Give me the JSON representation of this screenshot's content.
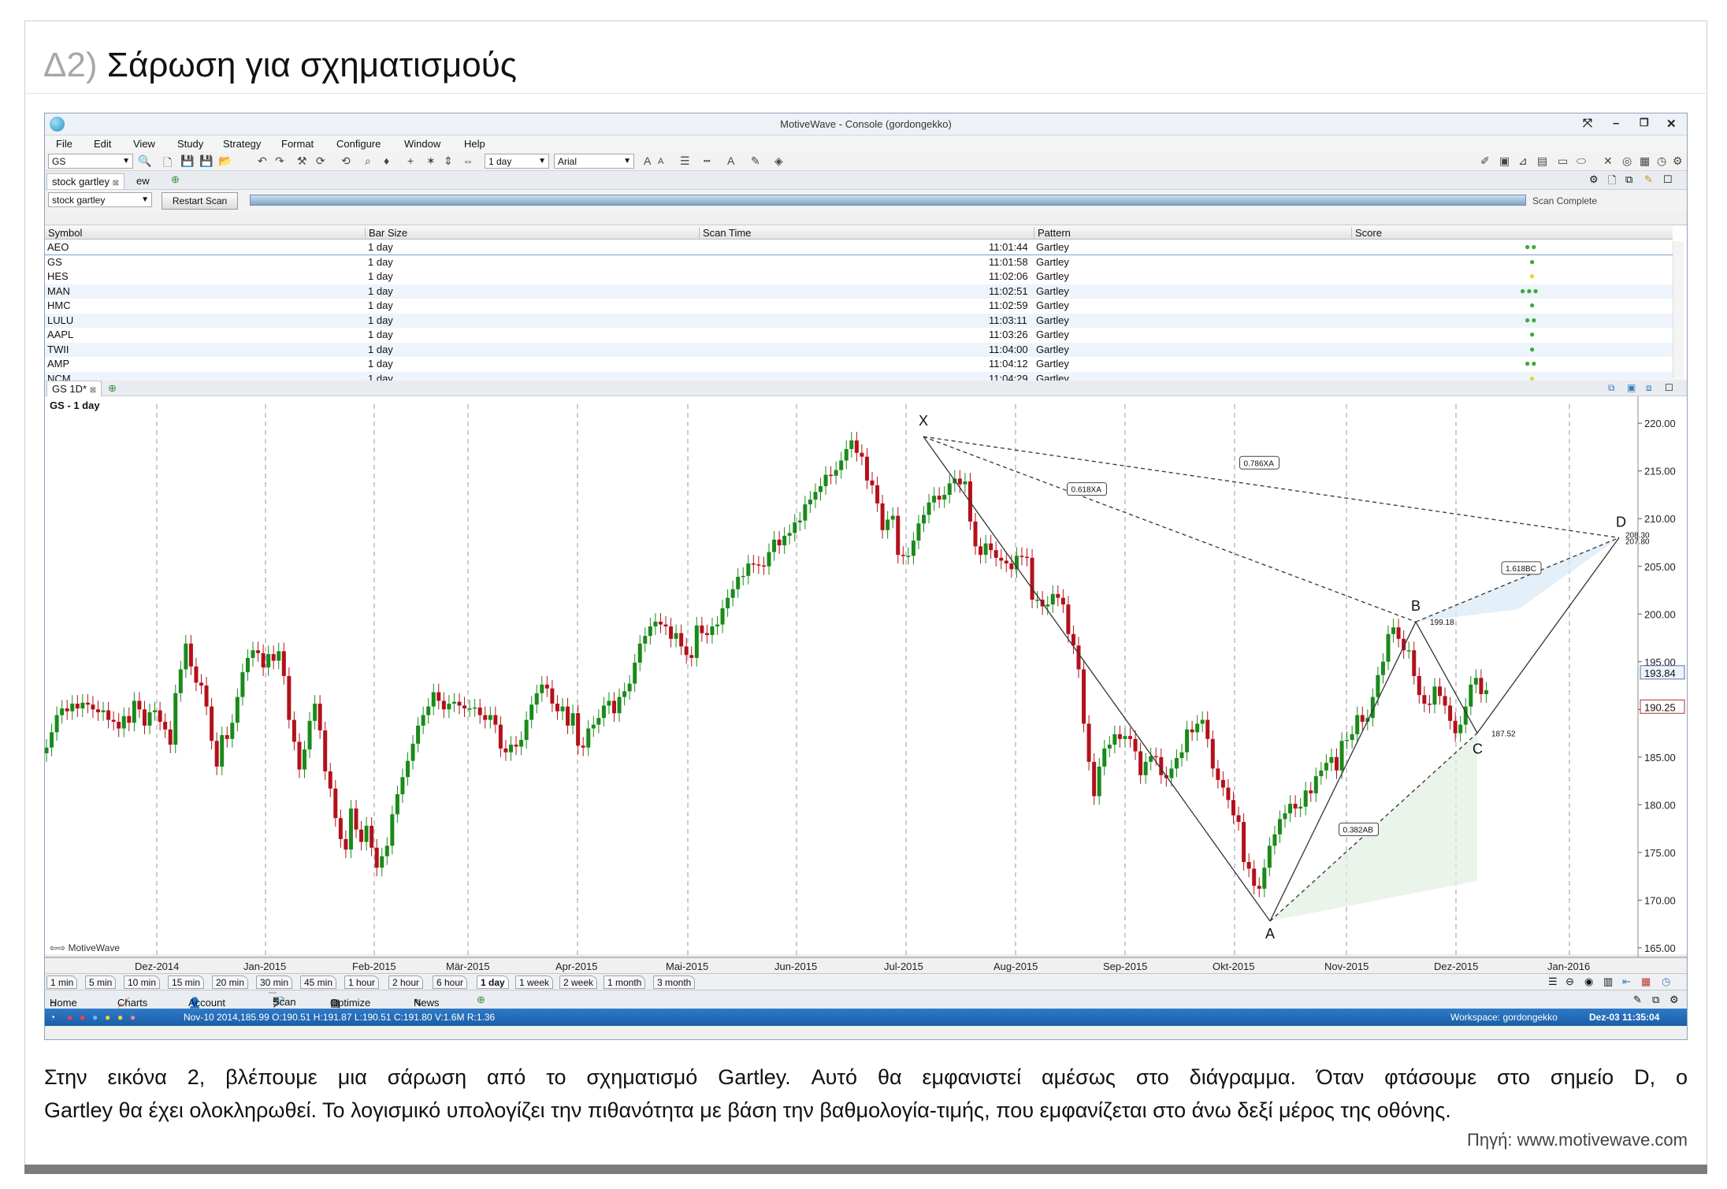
{
  "header": {
    "tag": "Δ2)",
    "title": "Σάρωση για σχηματισμούς"
  },
  "app": {
    "title": "MotiveWave - Console (gordongekko)",
    "menu": [
      "File",
      "Edit",
      "View",
      "Study",
      "Strategy",
      "Format",
      "Configure",
      "Window",
      "Help"
    ],
    "symbol": "GS",
    "bar_size": "1 day",
    "font": "Arial",
    "tabs": [
      "stock gartley",
      "ew"
    ],
    "scan_select": "stock gartley",
    "restart_label": "Restart Scan",
    "scan_status": "Scan Complete",
    "columns": [
      "Symbol",
      "Bar Size",
      "Scan Time",
      "Pattern",
      "Score"
    ],
    "rows": [
      {
        "symbol": "AEO",
        "bar": "1 day",
        "time": "11:01:44",
        "pattern": "Gartley",
        "score": "●●",
        "color": "#3aaa35"
      },
      {
        "symbol": "GS",
        "bar": "1 day",
        "time": "11:01:58",
        "pattern": "Gartley",
        "score": "●",
        "color": "#3aaa35"
      },
      {
        "symbol": "HES",
        "bar": "1 day",
        "time": "11:02:06",
        "pattern": "Gartley",
        "score": "●",
        "color": "#e8d22a"
      },
      {
        "symbol": "MAN",
        "bar": "1 day",
        "time": "11:02:51",
        "pattern": "Gartley",
        "score": "●●●",
        "color": "#3aaa35"
      },
      {
        "symbol": "HMC",
        "bar": "1 day",
        "time": "11:02:59",
        "pattern": "Gartley",
        "score": "●",
        "color": "#3aaa35"
      },
      {
        "symbol": "LULU",
        "bar": "1 day",
        "time": "11:03:11",
        "pattern": "Gartley",
        "score": "●●",
        "color": "#3aaa35"
      },
      {
        "symbol": "AAPL",
        "bar": "1 day",
        "time": "11:03:26",
        "pattern": "Gartley",
        "score": "●",
        "color": "#3aaa35"
      },
      {
        "symbol": "TWII",
        "bar": "1 day",
        "time": "11:04:00",
        "pattern": "Gartley",
        "score": "●",
        "color": "#3aaa35"
      },
      {
        "symbol": "AMP",
        "bar": "1 day",
        "time": "11:04:12",
        "pattern": "Gartley",
        "score": "●●",
        "color": "#3aaa35"
      },
      {
        "symbol": "NCM",
        "bar": "1 day",
        "time": "11:04:29",
        "pattern": "Gartley",
        "score": "●",
        "color": "#e8d22a"
      }
    ],
    "chart_tab": "GS 1D*",
    "chart_label": "GS - 1 day",
    "watermark": "MotiveWave",
    "timeframes": [
      "1 min",
      "5 min",
      "10 min",
      "15 min",
      "20 min",
      "30 min",
      "45 min",
      "1 hour",
      "2 hour",
      "6 hour",
      "1 day",
      "1 week",
      "2 week",
      "1 month",
      "3 month"
    ],
    "nav": [
      "Home",
      "Charts",
      "Account",
      "Scan",
      "Optimize",
      "News"
    ],
    "status_left": "Nov-10 2014,185.99 O:190.51 H:191.87 L:190.51 C:191.80 V:1.6M R:1.36",
    "status_right": "Workspace: gordongekko",
    "status_time": "Dez-03 11:35:04"
  },
  "chart_data": {
    "type": "candlestick",
    "title": "GS - 1 day",
    "x_ticks": [
      "Dez-2014",
      "Jan-2015",
      "Feb-2015",
      "Mär-2015",
      "Apr-2015",
      "Mai-2015",
      "Jun-2015",
      "Jul-2015",
      "Aug-2015",
      "Sep-2015",
      "Okt-2015",
      "Nov-2015",
      "Dez-2015",
      "Jan-2016"
    ],
    "y_ticks": [
      220,
      215,
      210,
      205,
      200,
      195,
      190,
      185,
      180,
      175,
      170,
      165
    ],
    "ylim": [
      164,
      222
    ],
    "price_labels": [
      193.84,
      190.25
    ],
    "closes": [
      186,
      187.6,
      189.4,
      190.1,
      189.8,
      190.6,
      190.1,
      190.7,
      190.5,
      190,
      189.7,
      189.9,
      188.9,
      188.7,
      188,
      189.3,
      188.6,
      190.9,
      190,
      188.3,
      189.7,
      189.9,
      188.7,
      187.9,
      186.3,
      191.7,
      194.2,
      196.9,
      194.5,
      192.8,
      192.5,
      190.3,
      186.7,
      184,
      187.3,
      186.9,
      188.6,
      191.3,
      193.9,
      195.4,
      196.2,
      195.9,
      194.4,
      195.8,
      195.1,
      196.1,
      193.5,
      188.9,
      186.6,
      183.7,
      185.8,
      188.8,
      190.6,
      187.8,
      183.5,
      181.7,
      178.6,
      176.4,
      175.3,
      179.6,
      177.4,
      176.1,
      177.8,
      175.5,
      173.4,
      174.6,
      175.7,
      179,
      181.1,
      182.9,
      184.6,
      186.4,
      188.3,
      189.4,
      190.3,
      191.8,
      190.9,
      190,
      190.6,
      190.8,
      190.4,
      190.1,
      190.1,
      190.2,
      189.4,
      188.9,
      189.4,
      188.4,
      185.9,
      185.5,
      186.3,
      186.1,
      186.8,
      188.9,
      190.5,
      191.7,
      192.6,
      192.2,
      190.6,
      189.8,
      190.3,
      188.3,
      189.6,
      186.2,
      186,
      188,
      188.4,
      189.1,
      190.4,
      190.9,
      189.6,
      191.3,
      191.9,
      192.7,
      194.9,
      196.9,
      197.7,
      198.7,
      199.2,
      198.9,
      198.7,
      197.4,
      198,
      196.6,
      195.7,
      195.4,
      198.8,
      198,
      197.8,
      198.7,
      198.9,
      200.6,
      201.7,
      202.6,
      203.9,
      204,
      205.3,
      205.2,
      205.1,
      205,
      206.5,
      207.8,
      207.2,
      208.2,
      208.5,
      209.6,
      209.8,
      211.5,
      212,
      212.8,
      213.4,
      214.6,
      214.5,
      215.1,
      216.1,
      217.3,
      218.2,
      216.9,
      216.5,
      214,
      213.5,
      211.6,
      208.8,
      209.9,
      210.3,
      206.2,
      206.1,
      206.1,
      207.7,
      209.5,
      210.4,
      211.7,
      212.4,
      212,
      212.5,
      213.7,
      214.2,
      213.6,
      213.9,
      209.7,
      207.1,
      206.2,
      207.4,
      206.7,
      205.9,
      205.6,
      205.3,
      204.7,
      206.1,
      206,
      205.9,
      201.5,
      201.5,
      200.8,
      201,
      202.1,
      201.7,
      201,
      197.9,
      196.7,
      194.2,
      188.5,
      184.5,
      180.9,
      184,
      185.9,
      186.3,
      187.4,
      186.9,
      187.2,
      186.9,
      185.6,
      183.1,
      184.5,
      185.1,
      185,
      183.1,
      182.8,
      183.8,
      184.9,
      185.5,
      187.9,
      187.6,
      188.5,
      188.9,
      186.9,
      183.8,
      182.6,
      181.8,
      180.5,
      178.9,
      178.2,
      174,
      173.3,
      171.5,
      171.2,
      173.4,
      175.7,
      176.9,
      178.5,
      179.1,
      180.1,
      179.6,
      179.8,
      181.5,
      181.2,
      183,
      183.6,
      184.4,
      185,
      183.6,
      186.7,
      186.8,
      187.4,
      189.4,
      188.7,
      189.1,
      191.3,
      193.6,
      195,
      197.9,
      198.6,
      197.4,
      196.2,
      196.2,
      193.5,
      191.5,
      190.6,
      190.5,
      192.4,
      191.4,
      190.4,
      188.8,
      187.5,
      188.4,
      190.3,
      192.6,
      193.3,
      191.6,
      192
    ],
    "pattern": {
      "name": "Gartley",
      "points": [
        {
          "label": "X",
          "x": "Jun-2015",
          "price": 218.6
        },
        {
          "label": "A",
          "x": "Okt-2015",
          "price": 167.8
        },
        {
          "label": "B",
          "x": "Nov-2015",
          "price": 199.18
        },
        {
          "label": "C",
          "x": "Dez-2015",
          "price": 187.52
        },
        {
          "label": "D",
          "x": "Jan-2016",
          "price": 208
        }
      ],
      "ratio_labels": [
        "0.786XA",
        "0.618XA",
        "1.618BC",
        "0.382AB"
      ],
      "d_levels": [
        "208.30",
        "207.80"
      ]
    }
  },
  "caption": "Στην εικόνα 2, βλέπουμε μια σάρωση από το σχηματισμό Gartley. Αυτό θα εμφανιστεί αμέσως στο διάγραμμα. Όταν φτάσουμε στο σημείο D, ο",
  "caption2": "Gartley θα έχει ολοκληρωθεί. Το λογισμικό υπολογίζει την πιθανότητα με βάση την βαθμολογία-τιμής, που εμφανίζεται στο άνω δεξί μέρος της οθόνης.",
  "source": "Πηγή: www.motivewave.com"
}
